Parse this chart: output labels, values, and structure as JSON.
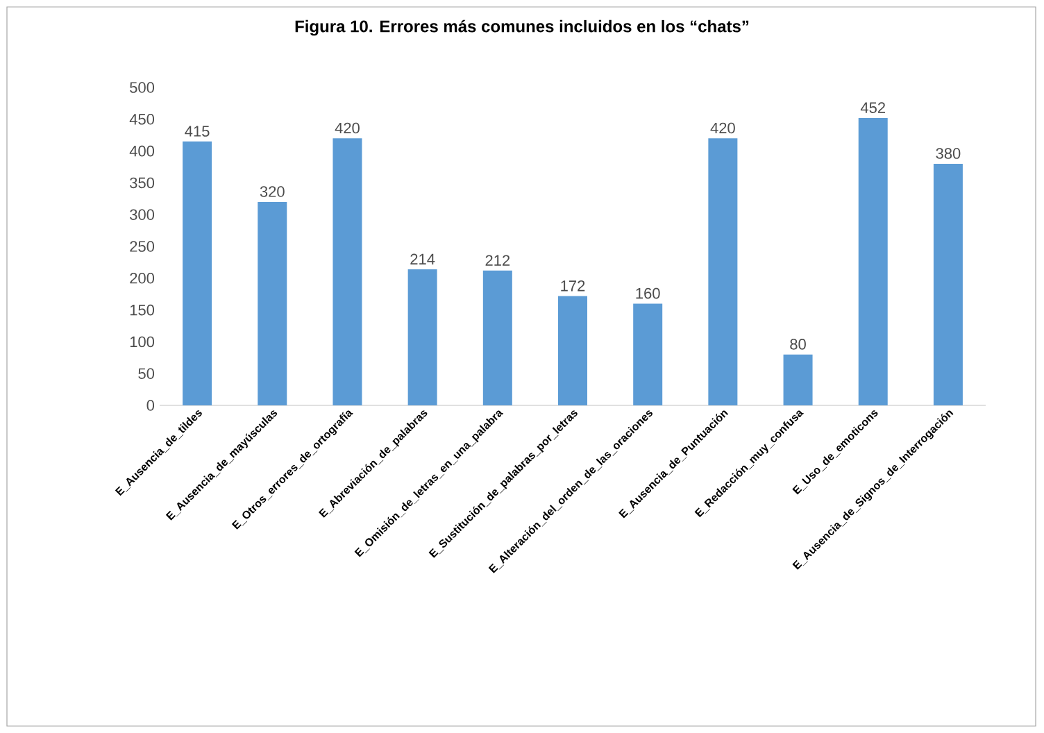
{
  "chart_data": {
    "type": "bar",
    "title": "Figura 10. Errores más comunes incluidos en los “chats”",
    "categories": [
      "E_Ausencia_de_tildes",
      "E_Ausencia_de_mayúsculas",
      "E_Otros_errores_de_ortografía",
      "E_Abreviación_de_palabras",
      "E_Omisión_de_letras_en_una_palabra",
      "E_Sustitución_de_palabras_por_letras",
      "E_Alteración_del_orden_de_las_oraciones",
      "E_Ausencia_de_Puntuación",
      "E_Redacción_muy_confusa",
      "E_Uso_de_emoticons",
      "E_Ausencia_de_Signos_de_Interrogación"
    ],
    "values": [
      415,
      320,
      420,
      214,
      212,
      172,
      160,
      420,
      80,
      452,
      380
    ],
    "color": "#5b9bd5",
    "ylim": [
      0,
      500
    ],
    "yticks": [
      0,
      50,
      100,
      150,
      200,
      250,
      300,
      350,
      400,
      450,
      500
    ],
    "data_labels": true
  }
}
